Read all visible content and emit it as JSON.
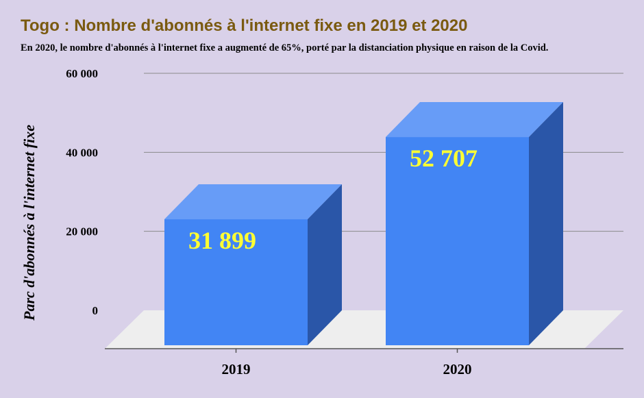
{
  "title": "Togo : Nombre d'abonnés à l'internet fixe en 2019 et 2020",
  "subtitle": "En 2020, le nombre d'abonnés à l'internet fixe a augmenté de 65%, porté par la distanciation physique en raison de la Covid.",
  "colors": {
    "background": "#d9d1e9",
    "title": "#7a5a10",
    "bar_front": "#4285f4",
    "bar_top": "#679cf7",
    "bar_side": "#2a56a8",
    "data_label": "#ffff33",
    "floor": "#eeeeee"
  },
  "chart_data": {
    "type": "bar",
    "style": "3d",
    "categories": [
      "2019",
      "2020"
    ],
    "values": [
      31899,
      52707
    ],
    "data_labels": [
      "31 899",
      "52 707"
    ],
    "ylabel": "Parc d'abonnés à l'internet fixe",
    "yticks": [
      "0",
      "20 000",
      "40 000",
      "60 000"
    ],
    "ytick_values": [
      0,
      20000,
      40000,
      60000
    ],
    "ylim": [
      0,
      60000
    ],
    "grid": true
  }
}
